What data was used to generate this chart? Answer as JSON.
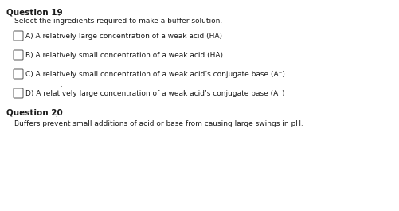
{
  "bg_color": "#ffffff",
  "question19_title": "Question 19",
  "question19_comma": "’",
  "question19_subtitle": "Select the ingredients required to make a buffer solution.",
  "options": [
    "A) A relatively large concentration of a weak acid (HA)",
    "B) A relatively small concentration of a weak acid (HA)",
    "C) A relatively small concentration of a weak acid’s conjugate base (A⁻)",
    "D) A relatively large concentration of a weak acid’s conjugate base (A⁻)"
  ],
  "question20_title": "Question 20",
  "question20_subtitle": "Buffers prevent small additions of acid or base from causing large swings in pH.",
  "title_fontsize": 7.5,
  "subtitle_fontsize": 6.5,
  "option_fontsize": 6.5,
  "text_color": "#1a1a1a",
  "checkbox_edge_color": "#555555",
  "dot_visible": true
}
